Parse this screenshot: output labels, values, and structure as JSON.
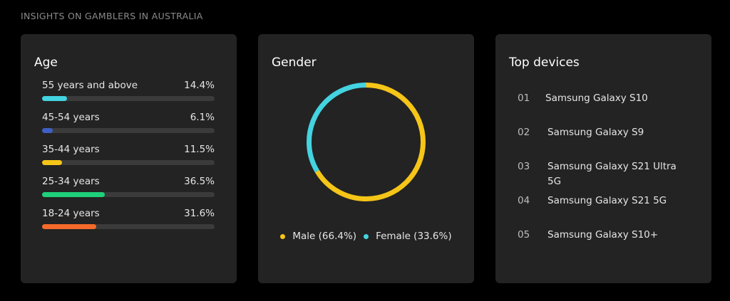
{
  "heading": "INSIGHTS ON GAMBLERS IN AUSTRALIA",
  "age": {
    "title": "Age",
    "items": [
      {
        "label": "55 years and above",
        "value_text": "14.4%",
        "value": 14.4,
        "color": "#44d3e0"
      },
      {
        "label": "45-54 years",
        "value_text": "6.1%",
        "value": 6.1,
        "color": "#3f5fc4"
      },
      {
        "label": "35-44 years",
        "value_text": "11.5%",
        "value": 11.5,
        "color": "#f5c518"
      },
      {
        "label": "25-34 years",
        "value_text": "36.5%",
        "value": 36.5,
        "color": "#1fd07b"
      },
      {
        "label": "18-24 years",
        "value_text": "31.6%",
        "value": 31.6,
        "color": "#f56a2a"
      }
    ]
  },
  "gender": {
    "title": "Gender",
    "chart_data": {
      "type": "pie",
      "categories": [
        "Male",
        "Female"
      ],
      "values": [
        66.4,
        33.6
      ],
      "colors": [
        "#f5c518",
        "#44d3e0"
      ]
    },
    "legend": [
      {
        "label": "Male (66.4%)",
        "color": "#f5c518"
      },
      {
        "label": "Female (33.6%)",
        "color": "#44d3e0"
      }
    ]
  },
  "devices": {
    "title": "Top devices",
    "items": [
      {
        "num": "01",
        "name": "Samsung Galaxy S10"
      },
      {
        "num": "02",
        "name": "Samsung Galaxy S9"
      },
      {
        "num": "03",
        "name": "Samsung Galaxy S21 Ultra 5G"
      },
      {
        "num": "04",
        "name": "Samsung Galaxy S21 5G"
      },
      {
        "num": "05",
        "name": "Samsung Galaxy S10+"
      }
    ]
  }
}
